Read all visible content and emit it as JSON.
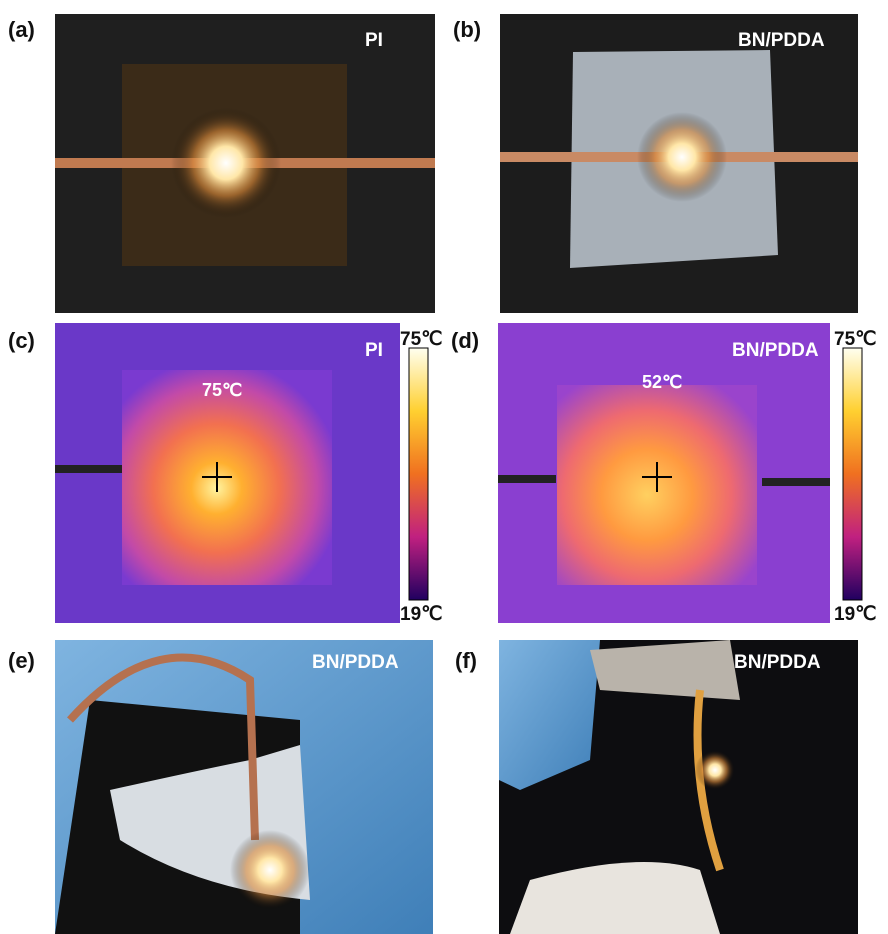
{
  "panels": [
    {
      "label": "(a)",
      "caption": "PI"
    },
    {
      "label": "(b)",
      "caption": "BN/PDDA"
    },
    {
      "label": "(c)",
      "caption": "PI",
      "temperature": "75℃",
      "scale_max": "75℃",
      "scale_min": "19℃"
    },
    {
      "label": "(d)",
      "caption": "BN/PDDA",
      "temperature": "52℃",
      "scale_max": "75℃",
      "scale_min": "19℃"
    },
    {
      "label": "(e)",
      "caption": "BN/PDDA"
    },
    {
      "label": "(f)",
      "caption": "BN/PDDA"
    }
  ]
}
